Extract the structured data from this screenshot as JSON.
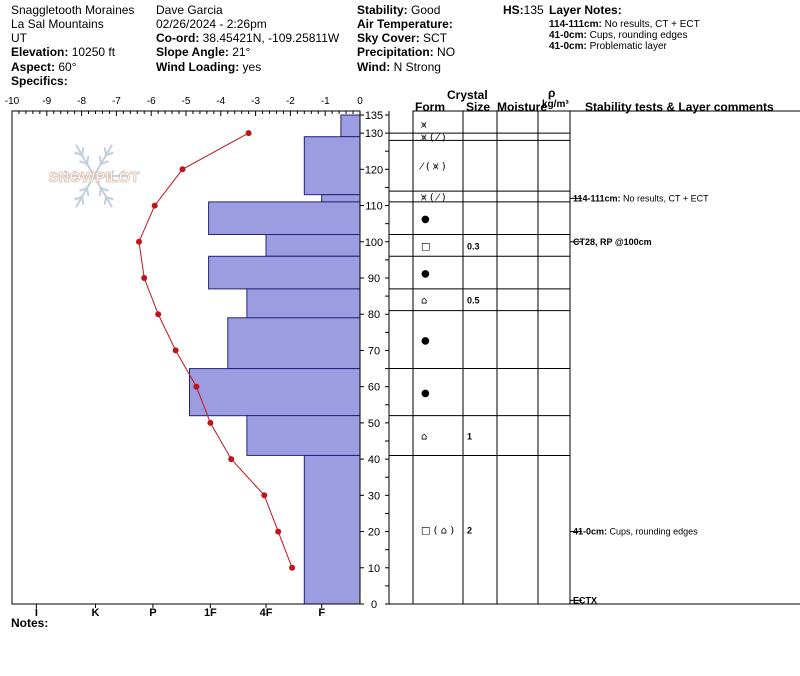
{
  "header": {
    "location": "Snaggletooth Moraines",
    "range": "La Sal Mountains",
    "state": "UT",
    "elevation_label": "Elevation:",
    "elevation": "10250 ft",
    "aspect_label": "Aspect:",
    "aspect": "60°",
    "specifics_label": "Specifics:",
    "observer": "Dave Garcia",
    "datetime": "02/26/2024 - 2:26pm",
    "coord_label": "Co-ord:",
    "coord": "38.45421N, -109.25811W",
    "slope_label": "Slope Angle:",
    "slope": "21°",
    "wind_loading_label": "Wind Loading:",
    "wind_loading": "yes",
    "stability_label": "Stability:",
    "stability": "Good",
    "air_temp_label": "Air Temperature:",
    "sky_label": "Sky Cover:",
    "sky": "SCT",
    "precip_label": "Precipitation:",
    "precip": "NO",
    "wind_label": "Wind:",
    "wind": "N Strong",
    "hs_label": "HS:",
    "hs": "135",
    "layer_notes_title": "Layer Notes:",
    "layer_notes": [
      {
        "depth": "114-111cm:",
        "text": "No results, CT + ECT"
      },
      {
        "depth": "41-0cm:",
        "text": "Cups, rounding edges"
      },
      {
        "depth": "41-0cm:",
        "text": "Problematic layer"
      }
    ]
  },
  "watermark": "SNOWPILOT",
  "notes_label": "Notes:",
  "column_headers": {
    "crystal": "Crystal",
    "form": "Form",
    "size": "Size",
    "moisture": "Moisture",
    "rho": "ρ",
    "density_unit": "kg/m³",
    "stability": "Stability tests & Layer comments"
  },
  "chart_data": {
    "type": "snow-profile",
    "temp_axis": {
      "min": -10,
      "max": 0,
      "ticks": [
        -10,
        -9,
        -8,
        -7,
        -6,
        -5,
        -4,
        -3,
        -2,
        -1,
        0
      ]
    },
    "height_axis": {
      "min": 0,
      "max": 135,
      "ticks": [
        135,
        130,
        120,
        110,
        100,
        90,
        80,
        70,
        60,
        50,
        40,
        30,
        20,
        10,
        0
      ]
    },
    "hardness_labels": [
      {
        "label": "I",
        "temp": -9.3
      },
      {
        "label": "K",
        "temp": -7.6
      },
      {
        "label": "P",
        "temp": -5.95
      },
      {
        "label": "1F",
        "temp": -4.3
      },
      {
        "label": "4F",
        "temp": -2.7
      },
      {
        "label": "F",
        "temp": -1.1
      }
    ],
    "temperature_profile": [
      {
        "height": 130,
        "temp": -3.2
      },
      {
        "height": 120,
        "temp": -5.1
      },
      {
        "height": 110,
        "temp": -5.9
      },
      {
        "height": 100,
        "temp": -6.35
      },
      {
        "height": 90,
        "temp": -6.2
      },
      {
        "height": 80,
        "temp": -5.8
      },
      {
        "height": 70,
        "temp": -5.3
      },
      {
        "height": 60,
        "temp": -4.7
      },
      {
        "height": 50,
        "temp": -4.3
      },
      {
        "height": 40,
        "temp": -3.7
      },
      {
        "height": 30,
        "temp": -2.75
      },
      {
        "height": 20,
        "temp": -2.35
      },
      {
        "height": 10,
        "temp": -1.95
      }
    ],
    "hardness_layers": [
      {
        "top": 135,
        "bottom": 129,
        "hardness_temp": -0.55
      },
      {
        "top": 129,
        "bottom": 113,
        "hardness_temp": -1.6
      },
      {
        "top": 113,
        "bottom": 111,
        "hardness_temp": -1.1
      },
      {
        "top": 111,
        "bottom": 102,
        "hardness_temp": -4.35
      },
      {
        "top": 102,
        "bottom": 96,
        "hardness_temp": -2.7
      },
      {
        "top": 96,
        "bottom": 87,
        "hardness_temp": -4.35
      },
      {
        "top": 87,
        "bottom": 79,
        "hardness_temp": -3.25
      },
      {
        "top": 79,
        "bottom": 65,
        "hardness_temp": -3.8
      },
      {
        "top": 65,
        "bottom": 52,
        "hardness_temp": -4.9
      },
      {
        "top": 52,
        "bottom": 41,
        "hardness_temp": -3.25
      },
      {
        "top": 41,
        "bottom": 0,
        "hardness_temp": -1.6
      }
    ],
    "layers": [
      {
        "top": 135,
        "bottom": 130,
        "form": "⩙",
        "size": ""
      },
      {
        "top": 130,
        "bottom": 128,
        "form": "⩙ ( ⁄ )",
        "size": ""
      },
      {
        "top": 128,
        "bottom": 114,
        "form": "⁄ ( ⩙ )",
        "size": ""
      },
      {
        "top": 114,
        "bottom": 111,
        "form": "⩙ ( ⁄ )",
        "size": ""
      },
      {
        "top": 111,
        "bottom": 102,
        "form": "●",
        "size": ""
      },
      {
        "top": 102,
        "bottom": 96,
        "form": "□",
        "size": "0.3"
      },
      {
        "top": 96,
        "bottom": 87,
        "form": "●",
        "size": ""
      },
      {
        "top": 87,
        "bottom": 81,
        "form": "⌂",
        "size": "0.5"
      },
      {
        "top": 81,
        "bottom": 65,
        "form": "●",
        "size": ""
      },
      {
        "top": 65,
        "bottom": 52,
        "form": "●",
        "size": ""
      },
      {
        "top": 52,
        "bottom": 41,
        "form": "⌂",
        "size": "1"
      },
      {
        "top": 41,
        "bottom": 0,
        "form": "□ ( ⌂ )",
        "size": "2"
      }
    ],
    "comments": [
      {
        "height": 112,
        "bold": "114-111cm:",
        "text": "No results, CT + ECT"
      },
      {
        "height": 100,
        "bold": "CT28, RP @100cm",
        "text": ""
      },
      {
        "height": 20,
        "bold": "41-0cm:",
        "text": "Cups, rounding edges"
      },
      {
        "height": 1,
        "bold": "ECTX",
        "text": ""
      }
    ]
  }
}
